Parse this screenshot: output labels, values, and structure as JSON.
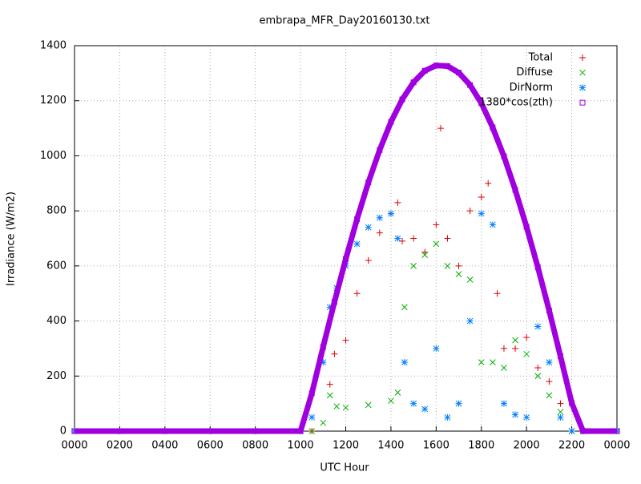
{
  "chart_data": {
    "type": "scatter",
    "title": "embrapa_MFR_Day20160130.txt",
    "xlabel": "UTC Hour",
    "ylabel": "Irradiance (W/m2)",
    "xlim": [
      0,
      24
    ],
    "ylim": [
      0,
      1400
    ],
    "xticks": [
      {
        "value": 0,
        "label": "0000"
      },
      {
        "value": 2,
        "label": "0200"
      },
      {
        "value": 4,
        "label": "0400"
      },
      {
        "value": 6,
        "label": "0600"
      },
      {
        "value": 8,
        "label": "0800"
      },
      {
        "value": 10,
        "label": "1000"
      },
      {
        "value": 12,
        "label": "1200"
      },
      {
        "value": 14,
        "label": "1400"
      },
      {
        "value": 16,
        "label": "1600"
      },
      {
        "value": 18,
        "label": "1800"
      },
      {
        "value": 20,
        "label": "2000"
      },
      {
        "value": 22,
        "label": "2200"
      },
      {
        "value": 24,
        "label": "0000"
      }
    ],
    "yticks": [
      0,
      200,
      400,
      600,
      800,
      1000,
      1200,
      1400
    ],
    "grid": true,
    "legend": "top-right",
    "series": [
      {
        "name": "Total",
        "color": "#e00000",
        "marker": "plus",
        "x": [
          0,
          2,
          4,
          6,
          8,
          10,
          10.5,
          11.3,
          11.5,
          12,
          12.5,
          13,
          13.5,
          14,
          14.3,
          14.5,
          15,
          15.5,
          16,
          16.2,
          16.5,
          17,
          17.5,
          18,
          18.3,
          18.7,
          19,
          19.5,
          20,
          20.5,
          21,
          21.5,
          22,
          22.5,
          24
        ],
        "values": [
          0,
          0,
          0,
          0,
          0,
          0,
          0,
          170,
          280,
          330,
          500,
          620,
          720,
          790,
          830,
          690,
          700,
          650,
          750,
          1100,
          700,
          600,
          800,
          850,
          900,
          500,
          300,
          300,
          340,
          230,
          180,
          100,
          0,
          0,
          0
        ]
      },
      {
        "name": "Diffuse",
        "color": "#00b000",
        "marker": "cross",
        "x": [
          0,
          2,
          4,
          6,
          8,
          10,
          10.5,
          11,
          11.3,
          11.6,
          12,
          13,
          14,
          14.3,
          14.6,
          15,
          15.5,
          16,
          16.5,
          17,
          17.5,
          18,
          18.5,
          19,
          19.5,
          20,
          20.5,
          21,
          21.5,
          22,
          22.5,
          24
        ],
        "values": [
          0,
          0,
          0,
          0,
          0,
          0,
          0,
          30,
          130,
          90,
          85,
          95,
          110,
          140,
          450,
          600,
          640,
          680,
          600,
          570,
          550,
          250,
          250,
          230,
          330,
          280,
          200,
          130,
          70,
          0,
          0,
          0
        ]
      },
      {
        "name": "DirNorm",
        "color": "#0080ff",
        "marker": "star",
        "x": [
          0,
          2,
          4,
          6,
          8,
          10,
          10.5,
          11,
          11.3,
          11.6,
          12,
          12.5,
          13,
          13.5,
          14,
          14.3,
          14.6,
          15,
          15.5,
          16,
          16.5,
          17,
          17.5,
          18,
          18.5,
          19,
          19.5,
          20,
          20.5,
          21,
          21.5,
          22,
          22.5,
          24
        ],
        "values": [
          0,
          0,
          0,
          0,
          0,
          0,
          50,
          250,
          450,
          520,
          600,
          680,
          740,
          775,
          790,
          700,
          250,
          100,
          80,
          300,
          50,
          100,
          400,
          790,
          750,
          100,
          60,
          50,
          380,
          250,
          50,
          0,
          0,
          0
        ]
      },
      {
        "name": "1380*cos(zth)",
        "color": "#a000e0",
        "marker": "square",
        "x": [
          0,
          2,
          4,
          6,
          8,
          10,
          10.5,
          11,
          11.5,
          12,
          12.5,
          13,
          13.5,
          14,
          14.5,
          15,
          15.5,
          16,
          16.5,
          17,
          17.5,
          18,
          18.5,
          19,
          19.5,
          20,
          20.5,
          21,
          21.5,
          22,
          22.5,
          24
        ],
        "values": [
          0,
          0,
          0,
          0,
          0,
          0,
          137,
          306,
          469,
          625,
          770,
          903,
          1021,
          1123,
          1205,
          1267,
          1309,
          1328,
          1326,
          1302,
          1257,
          1191,
          1103,
          998,
          876,
          742,
          595,
          438,
          272,
          102,
          0,
          0
        ]
      }
    ]
  }
}
